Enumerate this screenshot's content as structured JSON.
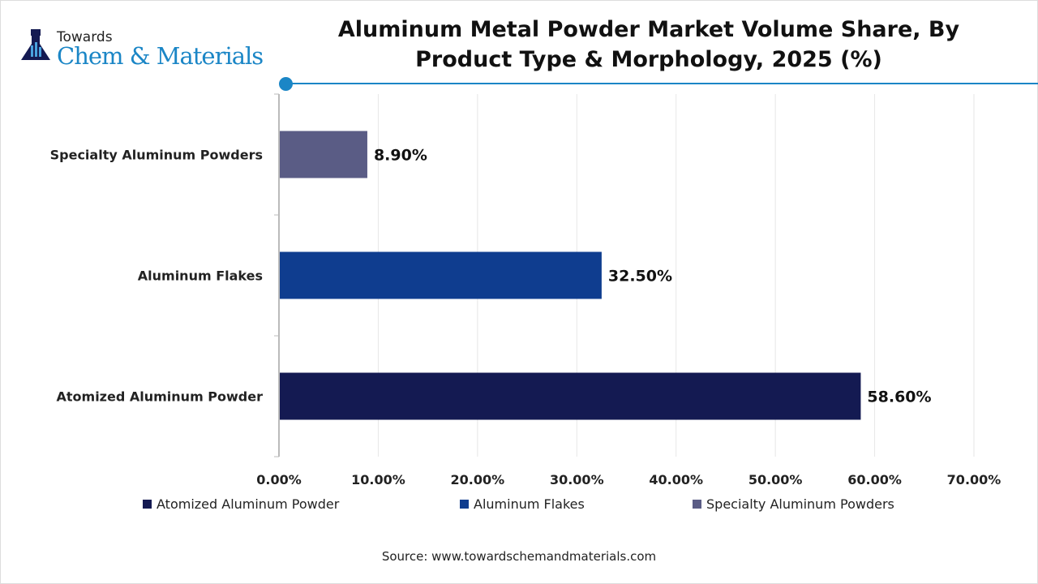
{
  "logo": {
    "line1": "Towards",
    "line2": "Chem & Materials"
  },
  "chart_data": {
    "type": "bar",
    "orientation": "horizontal",
    "title": "Aluminum Metal Powder Market Volume Share, By Product Type & Morphology, 2025 (%)",
    "categories": [
      "Specialty Aluminum Powders",
      "Aluminum Flakes",
      "Atomized Aluminum Powder"
    ],
    "values": [
      8.9,
      32.5,
      58.6
    ],
    "value_labels": [
      "8.90%",
      "32.50%",
      "58.60%"
    ],
    "colors": [
      "#5a5c85",
      "#0f3d8f",
      "#141a52"
    ],
    "xlim": [
      0,
      70
    ],
    "xticks": [
      0,
      10,
      20,
      30,
      40,
      50,
      60,
      70
    ],
    "xtick_labels": [
      "0.00%",
      "10.00%",
      "20.00%",
      "30.00%",
      "40.00%",
      "50.00%",
      "60.00%",
      "70.00%"
    ],
    "grid": true,
    "legend_position": "bottom",
    "legend": [
      {
        "label": "Atomized Aluminum Powder",
        "color": "#141a52"
      },
      {
        "label": "Aluminum Flakes",
        "color": "#0f3d8f"
      },
      {
        "label": "Specialty Aluminum Powders",
        "color": "#5a5c85"
      }
    ],
    "xlabel": "",
    "ylabel": ""
  },
  "source": "Source: www.towardschemandmaterials.com"
}
